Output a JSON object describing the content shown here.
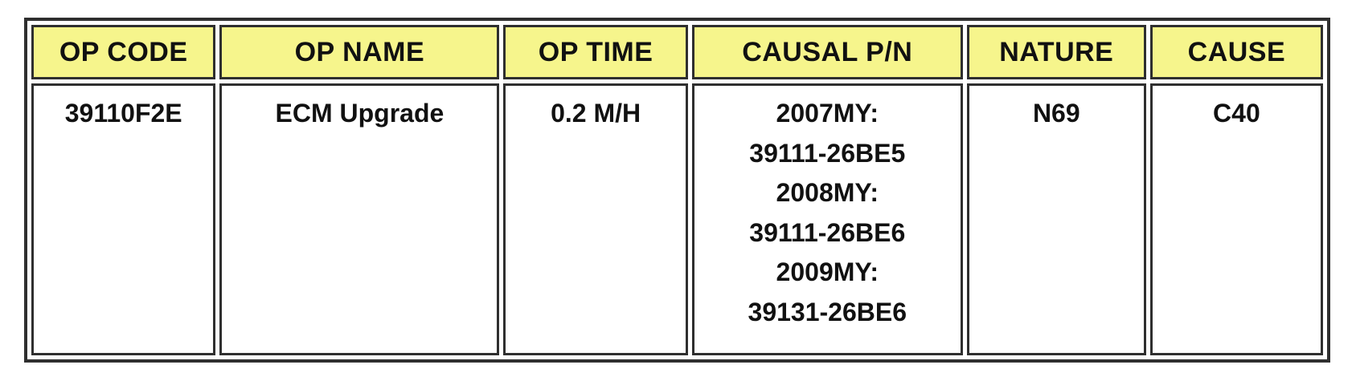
{
  "table": {
    "headers": [
      "OP CODE",
      "OP NAME",
      "OP TIME",
      "CAUSAL P/N",
      "NATURE",
      "CAUSE"
    ],
    "row": {
      "op_code": "39110F2E",
      "op_name": "ECM Upgrade",
      "op_time": "0.2 M/H",
      "causal_pn": [
        "2007MY:",
        "39111-26BE5",
        "2008MY:",
        "39111-26BE6",
        "2009MY:",
        "39131-26BE6"
      ],
      "nature": "N69",
      "cause": "C40"
    }
  },
  "colors": {
    "header_bg": "#F6F58C",
    "border": "#2F2F2F",
    "text": "#111111",
    "page_bg": "#FFFFFF"
  }
}
